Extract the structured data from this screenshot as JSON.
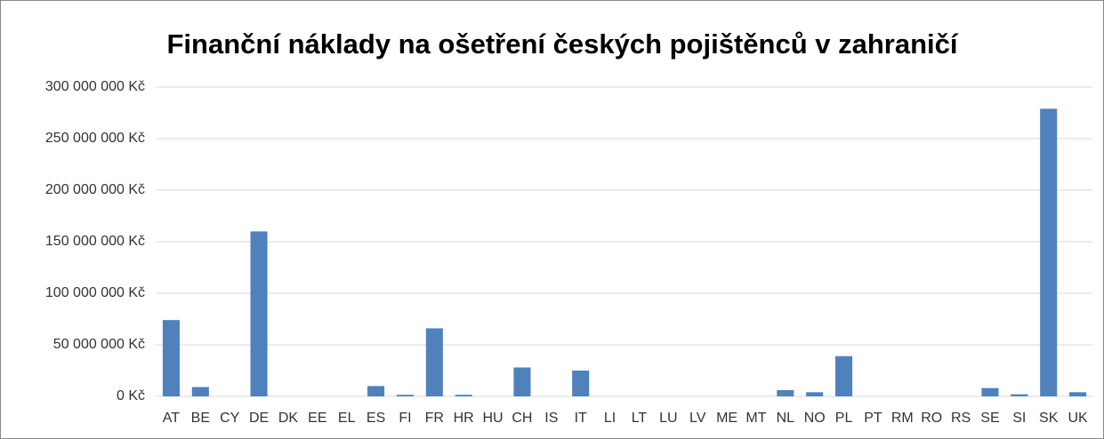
{
  "chart_data": {
    "type": "bar",
    "title": "Finanční náklady na ošetření českých pojištěnců v zahraničí",
    "categories": [
      "AT",
      "BE",
      "CY",
      "DE",
      "DK",
      "EE",
      "EL",
      "ES",
      "FI",
      "FR",
      "HR",
      "HU",
      "CH",
      "IS",
      "IT",
      "LI",
      "LT",
      "LU",
      "LV",
      "ME",
      "MT",
      "NL",
      "NO",
      "PL",
      "PT",
      "RM",
      "RO",
      "RS",
      "SE",
      "SI",
      "SK",
      "UK"
    ],
    "values": [
      74000000,
      9000000,
      0,
      160000000,
      0,
      0,
      0,
      10000000,
      1500000,
      66000000,
      1500000,
      0,
      28000000,
      0,
      25000000,
      0,
      0,
      0,
      0,
      0,
      0,
      6000000,
      4000000,
      39000000,
      0,
      0,
      0,
      0,
      8000000,
      2000000,
      279000000,
      4000000
    ],
    "color": "#4f81bd",
    "ylim": [
      0,
      300000000
    ],
    "yticks": [
      {
        "value": 0,
        "label": "0 Kč"
      },
      {
        "value": 50000000,
        "label": "50 000 000 Kč"
      },
      {
        "value": 100000000,
        "label": "100 000 000 Kč"
      },
      {
        "value": 150000000,
        "label": "150 000 000 Kč"
      },
      {
        "value": 200000000,
        "label": "200 000 000 Kč"
      },
      {
        "value": 250000000,
        "label": "250 000 000 Kč"
      },
      {
        "value": 300000000,
        "label": "300 000 000 Kč"
      }
    ],
    "grid": true
  }
}
